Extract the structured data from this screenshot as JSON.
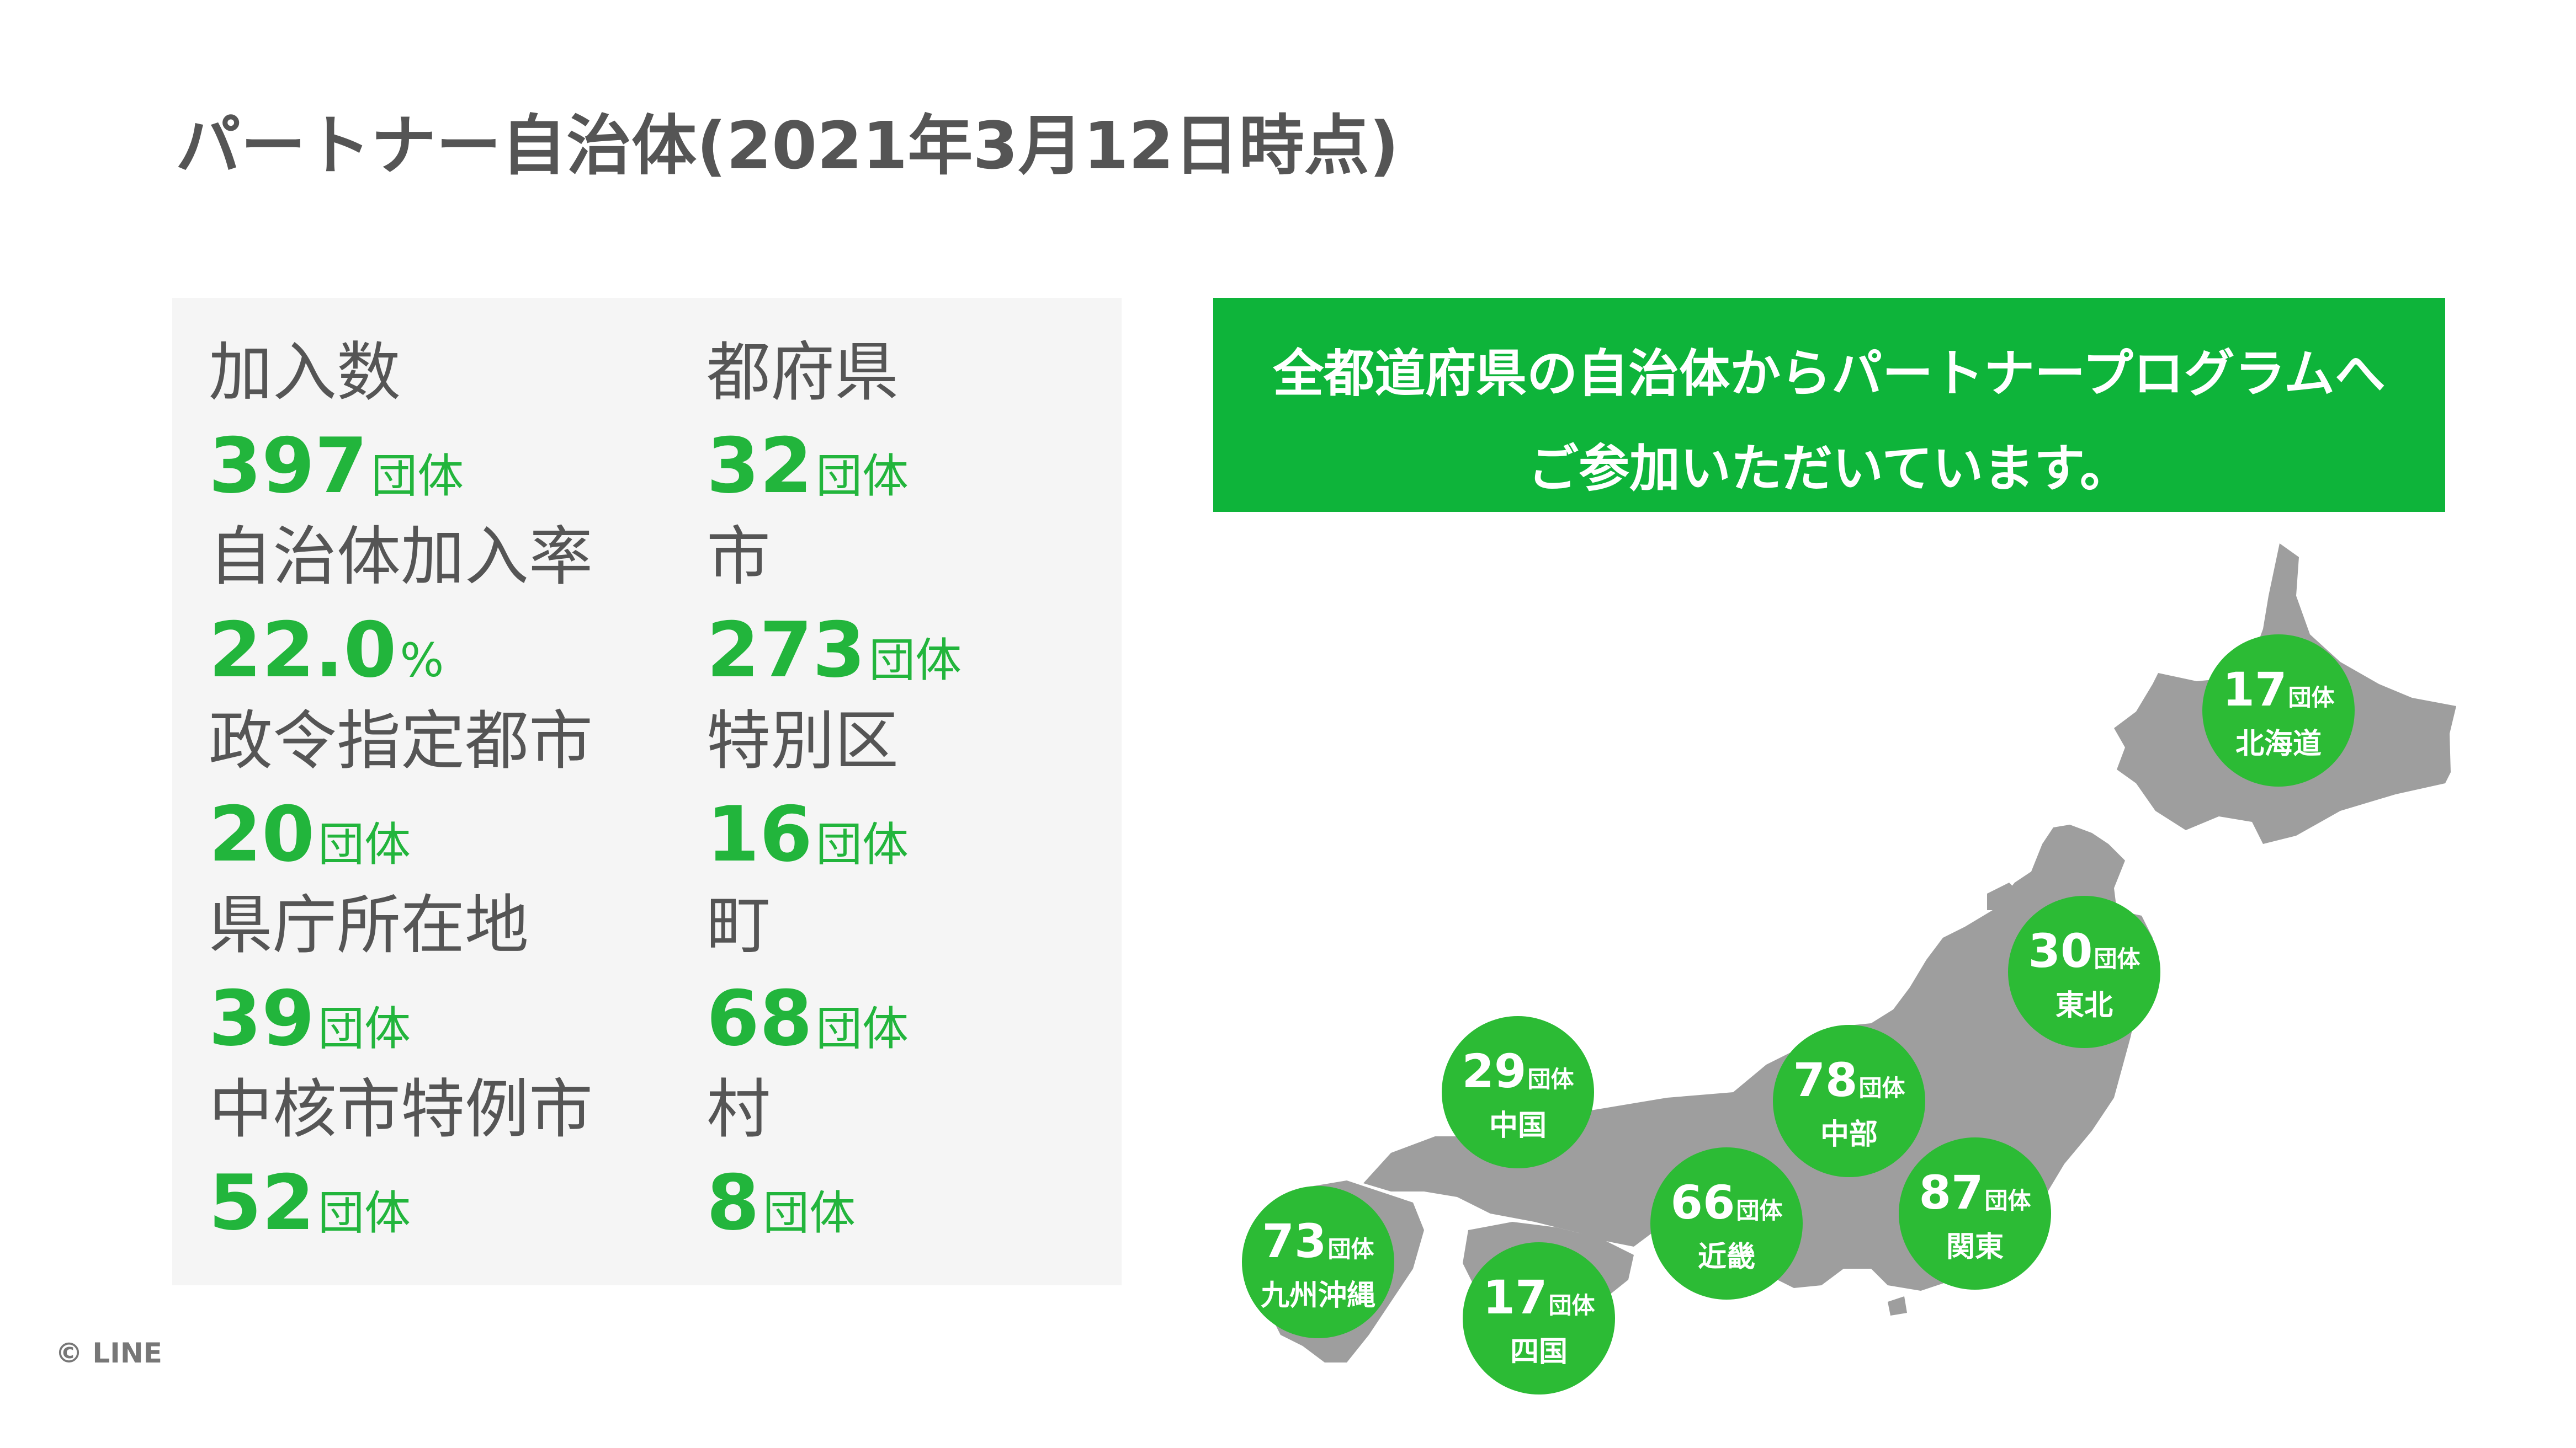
{
  "title": "パートナー自治体(2021年3月12日時点)",
  "stats": [
    {
      "label": "加入数",
      "value": "397",
      "unit": "団体"
    },
    {
      "label": "都府県",
      "value": "32",
      "unit": "団体"
    },
    {
      "label": "自治体加入率",
      "value": "22.0",
      "unit": "%"
    },
    {
      "label": "市",
      "value": "273",
      "unit": "団体"
    },
    {
      "label": "政令指定都市",
      "value": "20",
      "unit": "団体"
    },
    {
      "label": "特別区",
      "value": "16",
      "unit": "団体"
    },
    {
      "label": "県庁所在地",
      "value": "39",
      "unit": "団体"
    },
    {
      "label": "町",
      "value": "68",
      "unit": "団体"
    },
    {
      "label": "中核市特例市",
      "value": "52",
      "unit": "団体"
    },
    {
      "label": "村",
      "value": "8",
      "unit": "団体"
    }
  ],
  "banner": {
    "line1": "全都道府県の自治体からパートナープログラムへ",
    "line2": "ご参加いただいています。"
  },
  "regions": [
    {
      "name": "北海道",
      "value": "17",
      "unit": "団体"
    },
    {
      "name": "東北",
      "value": "30",
      "unit": "団体"
    },
    {
      "name": "中部",
      "value": "78",
      "unit": "団体"
    },
    {
      "name": "関東",
      "value": "87",
      "unit": "団体"
    },
    {
      "name": "近畿",
      "value": "66",
      "unit": "団体"
    },
    {
      "name": "中国",
      "value": "29",
      "unit": "団体"
    },
    {
      "name": "四国",
      "value": "17",
      "unit": "団体"
    },
    {
      "name": "九州沖縄",
      "value": "73",
      "unit": "団体"
    }
  ],
  "copyright": "© LINE",
  "colors": {
    "accent": "#22b53c",
    "banner": "#0eb43a",
    "badge": "#2cbb35",
    "panel": "#f5f5f5",
    "map": "#9e9e9e",
    "text": "#555555"
  },
  "icons": {
    "map": "japan-map-icon"
  }
}
